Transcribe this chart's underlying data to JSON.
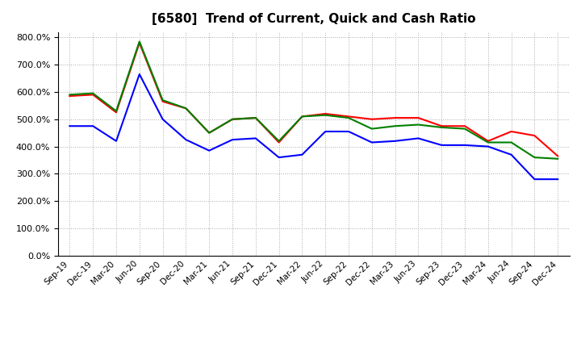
{
  "title": "[6580]  Trend of Current, Quick and Cash Ratio",
  "x_labels": [
    "Sep-19",
    "Dec-19",
    "Mar-20",
    "Jun-20",
    "Sep-20",
    "Dec-20",
    "Mar-21",
    "Jun-21",
    "Sep-21",
    "Dec-21",
    "Mar-22",
    "Jun-22",
    "Sep-22",
    "Dec-22",
    "Mar-23",
    "Jun-23",
    "Sep-23",
    "Dec-23",
    "Mar-24",
    "Jun-24",
    "Sep-24",
    "Dec-24"
  ],
  "current_ratio": [
    585,
    590,
    525,
    780,
    565,
    540,
    450,
    500,
    505,
    415,
    510,
    520,
    510,
    500,
    505,
    505,
    475,
    475,
    420,
    455,
    440,
    365
  ],
  "quick_ratio": [
    590,
    595,
    530,
    785,
    570,
    540,
    450,
    500,
    505,
    420,
    510,
    515,
    505,
    465,
    475,
    480,
    470,
    465,
    415,
    415,
    360,
    355
  ],
  "cash_ratio": [
    475,
    475,
    420,
    665,
    500,
    425,
    385,
    425,
    430,
    360,
    370,
    455,
    455,
    415,
    420,
    430,
    405,
    405,
    400,
    370,
    280,
    280
  ],
  "ylim": [
    0,
    820
  ],
  "yticks": [
    0,
    100,
    200,
    300,
    400,
    500,
    600,
    700,
    800
  ],
  "current_color": "#ff0000",
  "quick_color": "#008000",
  "cash_color": "#0000ff",
  "bg_color": "#ffffff",
  "plot_bg_color": "#ffffff",
  "grid_color": "#aaaaaa",
  "line_width": 1.5
}
